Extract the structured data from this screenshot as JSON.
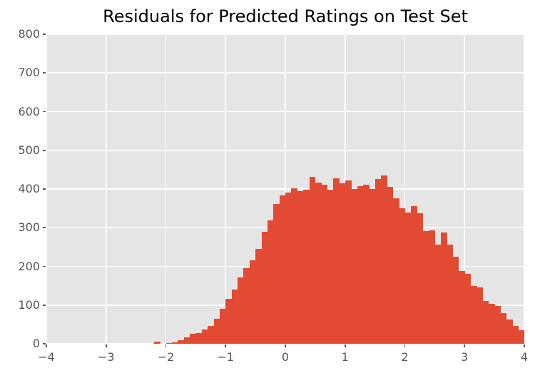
{
  "chart_data": {
    "type": "bar",
    "chart_kind": "histogram",
    "title": "Residuals for Predicted Ratings on Test Set",
    "xlabel": "",
    "ylabel": "",
    "xlim": [
      -4,
      4
    ],
    "ylim": [
      0,
      800
    ],
    "xticks": [
      -4,
      -3,
      -2,
      -1,
      0,
      1,
      2,
      3,
      4
    ],
    "xtick_labels": [
      "−4",
      "−3",
      "−2",
      "−1",
      "0",
      "1",
      "2",
      "3",
      "4"
    ],
    "yticks": [
      0,
      100,
      200,
      300,
      400,
      500,
      600,
      700,
      800
    ],
    "ytick_labels": [
      "0",
      "100",
      "200",
      "300",
      "400",
      "500",
      "600",
      "700",
      "800"
    ],
    "grid": true,
    "legend": null,
    "bin_start": -2.2,
    "bin_width": 0.1,
    "values": [
      5,
      0,
      2,
      4,
      10,
      16,
      25,
      28,
      37,
      47,
      65,
      91,
      116,
      140,
      172,
      195,
      216,
      246,
      289,
      319,
      362,
      383,
      390,
      401,
      395,
      398,
      431,
      416,
      411,
      398,
      428,
      414,
      422,
      400,
      408,
      411,
      400,
      425,
      435,
      405,
      376,
      350,
      340,
      355,
      337,
      291,
      293,
      257,
      288,
      257,
      224,
      188,
      181,
      150,
      146,
      110,
      103,
      97,
      79,
      63,
      47,
      35
    ],
    "colors": {
      "bar": "#E24A33",
      "plot_background": "#E5E5E5",
      "gridline": "#FFFFFF",
      "tick_label": "#555555",
      "tick_mark": "#555555",
      "title": "#000000",
      "figure_background": "#FFFFFF"
    }
  }
}
